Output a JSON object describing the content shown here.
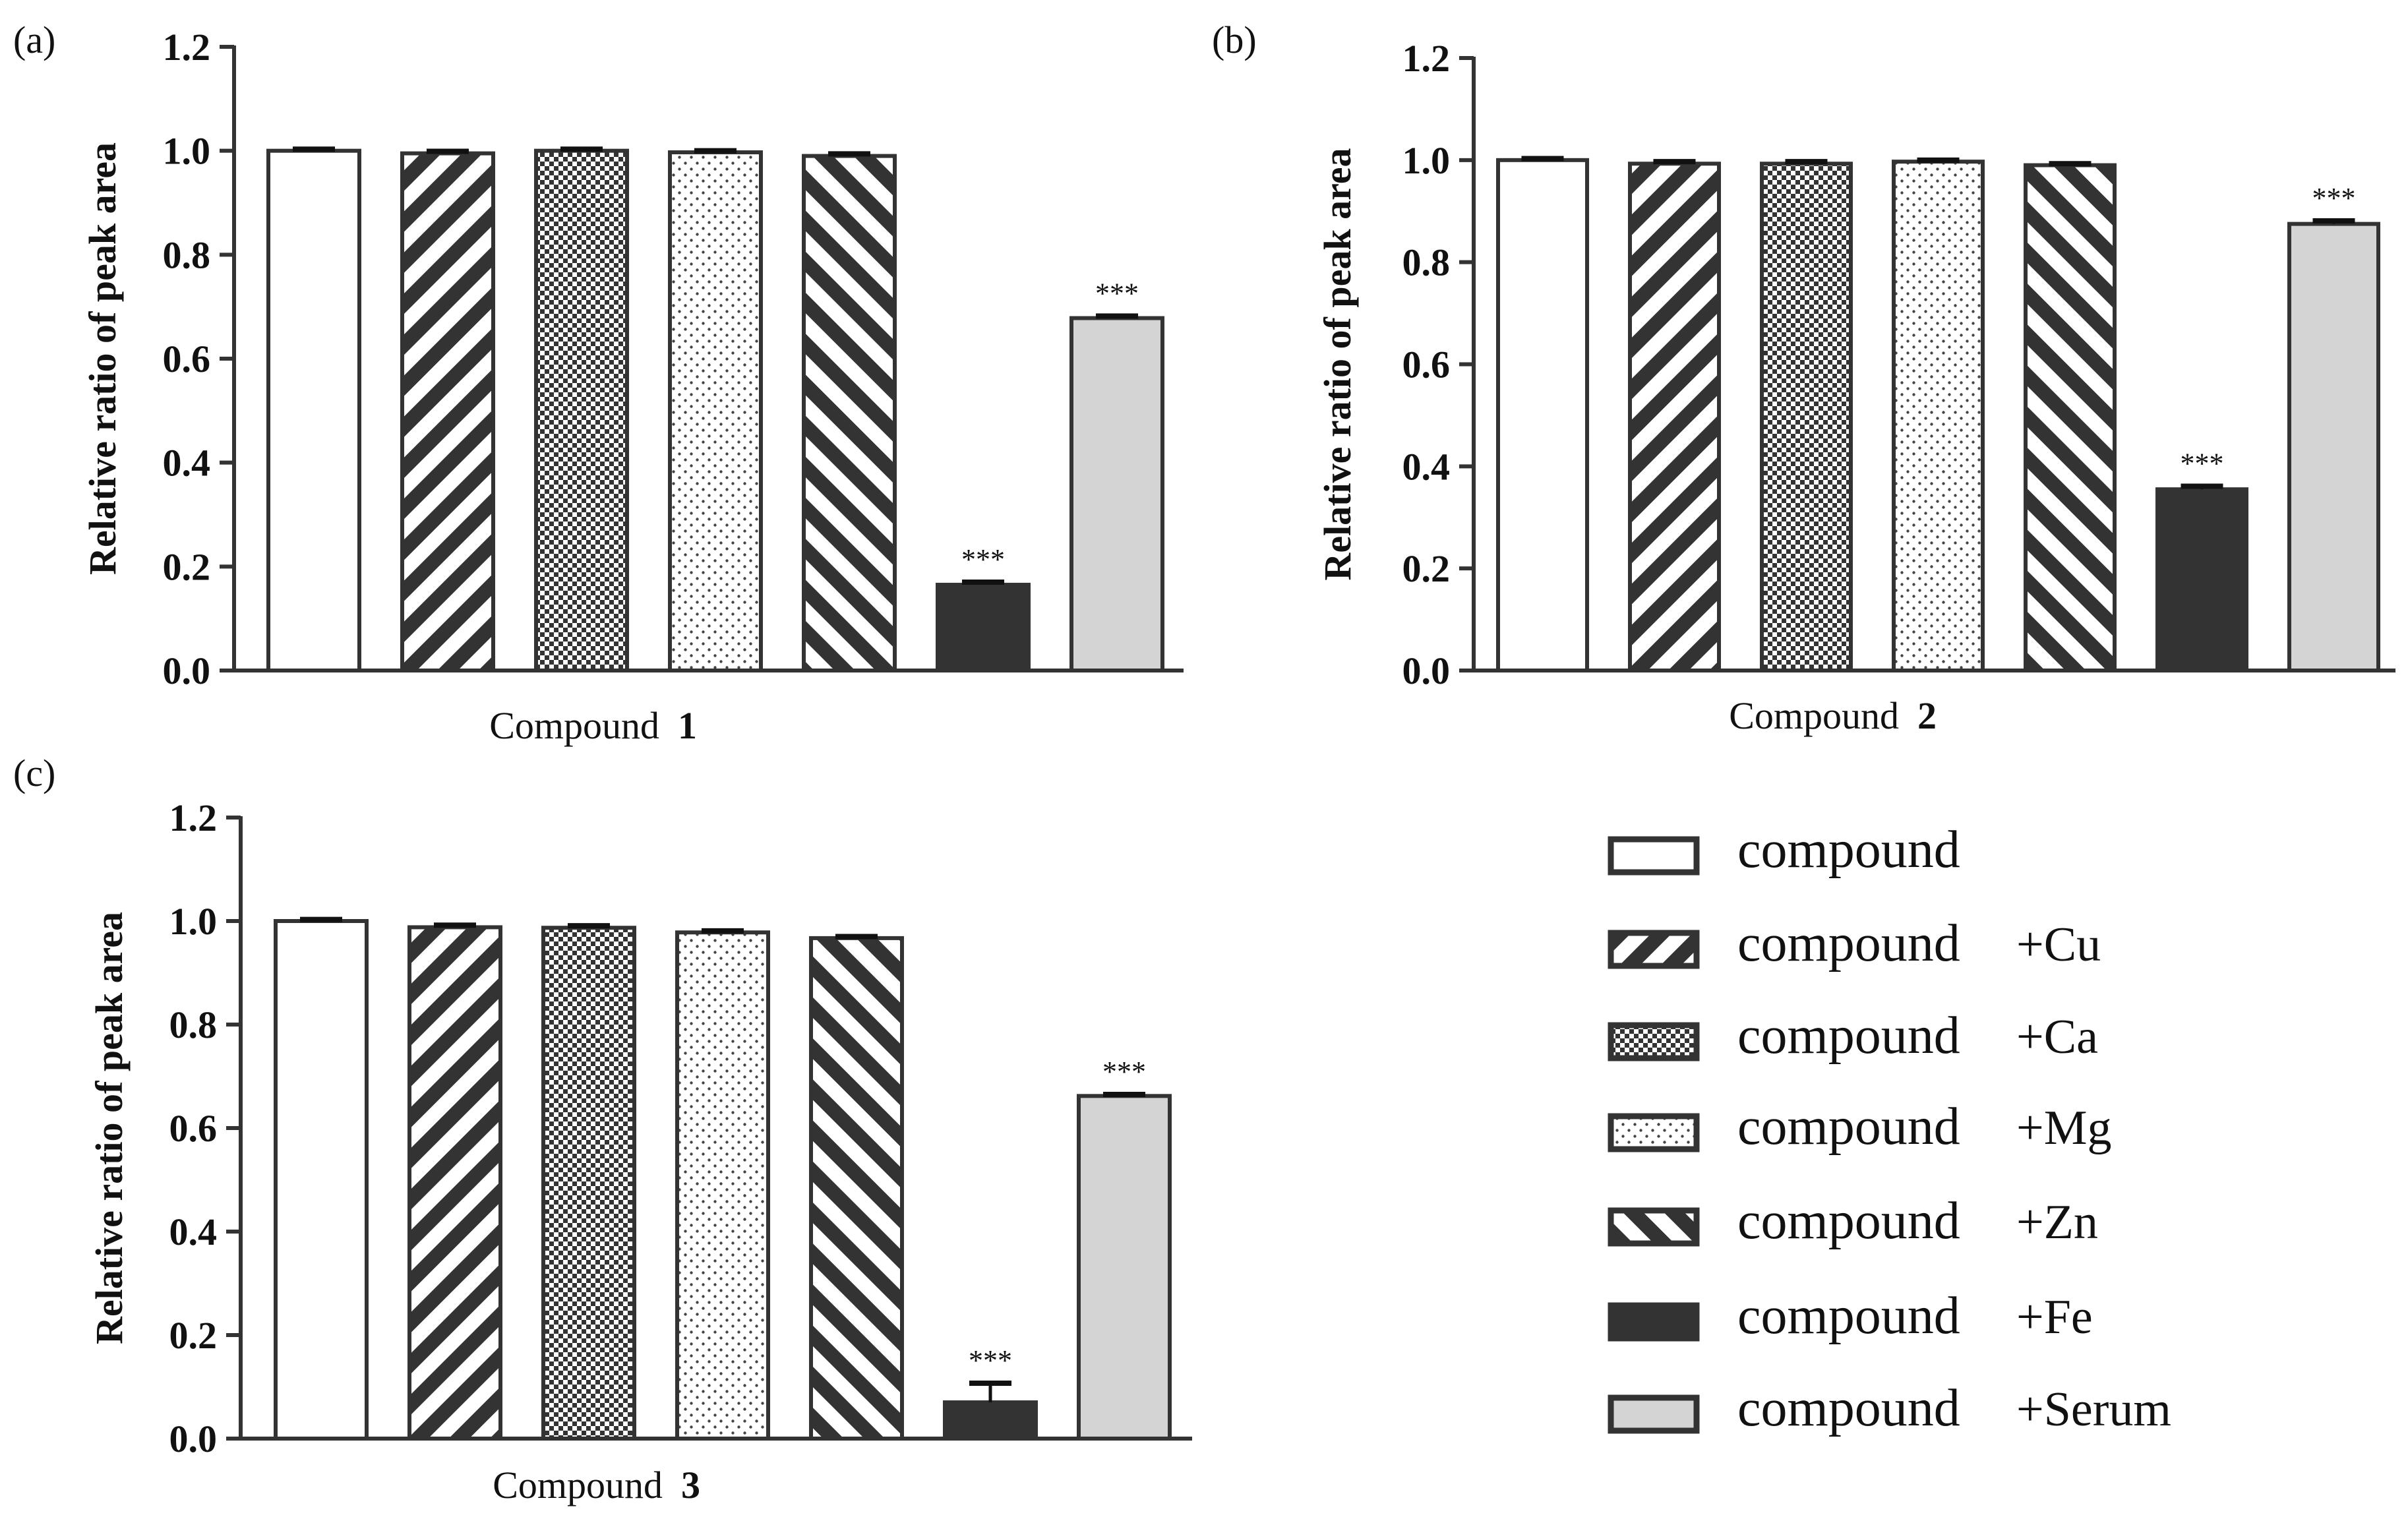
{
  "colors": {
    "stroke": "#333333",
    "fe_fill": "#333333",
    "serum_fill": "#d4d4d4",
    "plain_fill": "#ffffff"
  },
  "legend": [
    {
      "pattern": "plain",
      "main": "compound",
      "suffix": ""
    },
    {
      "pattern": "diag-back",
      "main": "compound",
      "suffix": "+Cu"
    },
    {
      "pattern": "checker",
      "main": "compound",
      "suffix": "+Ca"
    },
    {
      "pattern": "dots",
      "main": "compound",
      "suffix": "+Mg"
    },
    {
      "pattern": "diag-fwd",
      "main": "compound",
      "suffix": "+Zn"
    },
    {
      "pattern": "fe",
      "main": "compound",
      "suffix": "+Fe"
    },
    {
      "pattern": "serum",
      "main": "compound",
      "suffix": "+Serum"
    }
  ],
  "chart_data": [
    {
      "type": "bar",
      "panel_label": "(a)",
      "xlabel_text": "Compound",
      "xlabel_number": "1",
      "ylabel": "Relative ratio of peak area",
      "ylim": [
        0,
        1.2
      ],
      "yticks": [
        "0.0",
        "0.2",
        "0.4",
        "0.6",
        "0.8",
        "1.0",
        "1.2"
      ],
      "categories": [
        "compound",
        "compound +Cu",
        "compound +Ca",
        "compound +Mg",
        "compound +Zn",
        "compound +Fe",
        "compound +Serum"
      ],
      "values": [
        1.0,
        0.995,
        1.0,
        0.997,
        0.99,
        0.165,
        0.678
      ],
      "errors": [
        0.003,
        0.004,
        0.003,
        0.003,
        0.004,
        0.005,
        0.004
      ],
      "annotations": [
        "",
        "",
        "",
        "",
        "",
        "***",
        "***"
      ]
    },
    {
      "type": "bar",
      "panel_label": "(b)",
      "xlabel_text": "Compound",
      "xlabel_number": "2",
      "ylabel": "Relative ratio of peak area",
      "ylim": [
        0,
        1.2
      ],
      "yticks": [
        "0.0",
        "0.2",
        "0.4",
        "0.6",
        "0.8",
        "1.0",
        "1.2"
      ],
      "categories": [
        "compound",
        "compound +Cu",
        "compound +Ca",
        "compound +Mg",
        "compound +Zn",
        "compound +Fe",
        "compound +Serum"
      ],
      "values": [
        1.0,
        0.993,
        0.993,
        0.997,
        0.99,
        0.355,
        0.875
      ],
      "errors": [
        0.003,
        0.004,
        0.004,
        0.003,
        0.003,
        0.006,
        0.006
      ],
      "annotations": [
        "",
        "",
        "",
        "",
        "",
        "***",
        "***"
      ]
    },
    {
      "type": "bar",
      "panel_label": "(c)",
      "xlabel_text": "Compound",
      "xlabel_number": "3",
      "ylabel": "Relative ratio of peak area",
      "ylim": [
        0,
        1.2
      ],
      "yticks": [
        "0.0",
        "0.2",
        "0.4",
        "0.6",
        "0.8",
        "1.0",
        "1.2"
      ],
      "categories": [
        "compound",
        "compound +Cu",
        "compound +Ca",
        "compound +Mg",
        "compound +Zn",
        "compound +Fe",
        "compound +Serum"
      ],
      "values": [
        1.0,
        0.988,
        0.987,
        0.978,
        0.967,
        0.07,
        0.662
      ],
      "errors": [
        0.003,
        0.004,
        0.004,
        0.003,
        0.003,
        0.037,
        0.003
      ],
      "annotations": [
        "",
        "",
        "",
        "",
        "",
        "***",
        "***"
      ]
    }
  ]
}
